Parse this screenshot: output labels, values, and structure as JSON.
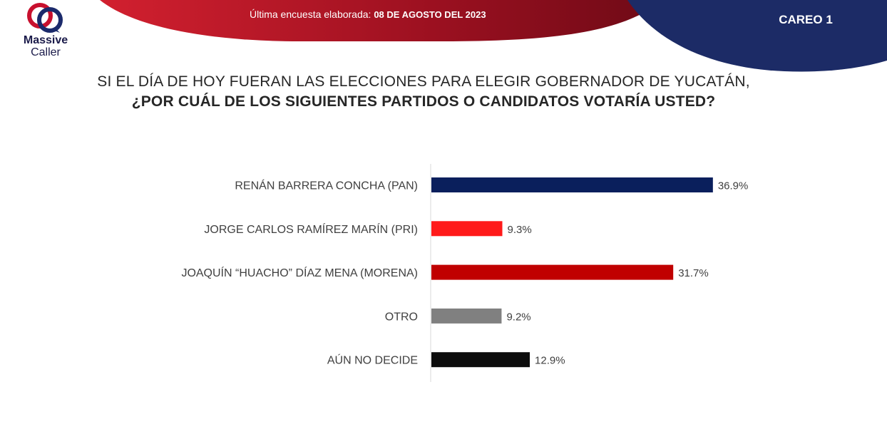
{
  "header": {
    "subtitle_prefix": "Última encuesta elaborada: ",
    "subtitle_date": "08 DE AGOSTO DEL 2023",
    "careo": "CAREO 1"
  },
  "logo": {
    "line1": "Massive",
    "line2": "Caller"
  },
  "question": {
    "line1": "SI EL DÍA DE HOY FUERAN LAS ELECCIONES PARA ELEGIR GOBERNADOR DE YUCATÁN,",
    "line2": "¿POR CUÁL DE LOS SIGUIENTES PARTIDOS O CANDIDATOS VOTARÍA USTED?"
  },
  "colors": {
    "navy": "#0a1f5c",
    "red": "#ff1a1a",
    "dark_red": "#c00000",
    "gray": "#808080",
    "black": "#0d0d0d",
    "banner_red": "#b5121b"
  },
  "chart_data": {
    "type": "bar",
    "orientation": "horizontal",
    "categories": [
      "RENÁN BARRERA CONCHA  (PAN)",
      "JORGE CARLOS RAMÍREZ MARÍN (PRI)",
      "JOAQUÍN “HUACHO” DÍAZ MENA  (MORENA)",
      "OTRO",
      "AÚN NO DECIDE"
    ],
    "values": [
      36.9,
      9.3,
      31.7,
      9.2,
      12.9
    ],
    "value_labels": [
      "36.9%",
      "9.3%",
      "31.7%",
      "9.2%",
      "12.9%"
    ],
    "bar_colors": [
      "#0a1f5c",
      "#ff1a1a",
      "#c00000",
      "#808080",
      "#0d0d0d"
    ],
    "xlim": [
      0,
      40
    ],
    "grid": false,
    "legend": "none"
  }
}
